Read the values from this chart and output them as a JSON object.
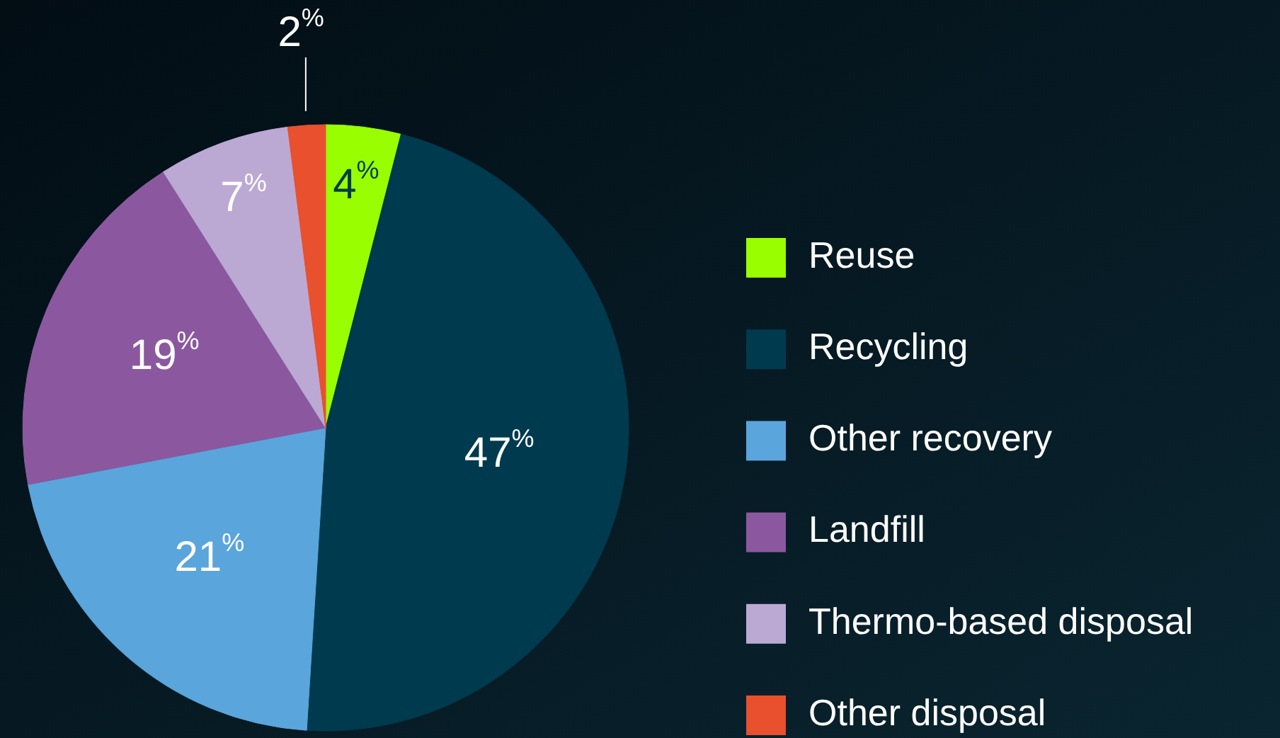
{
  "chart_data": {
    "type": "pie",
    "categories": [
      "Reuse",
      "Recycling",
      "Other recovery",
      "Landfill",
      "Thermo-based disposal",
      "Other disposal"
    ],
    "values": [
      4,
      47,
      21,
      19,
      7,
      2
    ],
    "colors": [
      "#99ff00",
      "#003a4f",
      "#5aa5dc",
      "#8b58a0",
      "#bba9d3",
      "#e8502e"
    ],
    "value_labels": [
      "4$^{%}$",
      "47$^{%}$",
      "21$^{%}$",
      "19$^{%}$",
      "7$^{%}$",
      "2$^{%}$"
    ],
    "legend": "right"
  }
}
